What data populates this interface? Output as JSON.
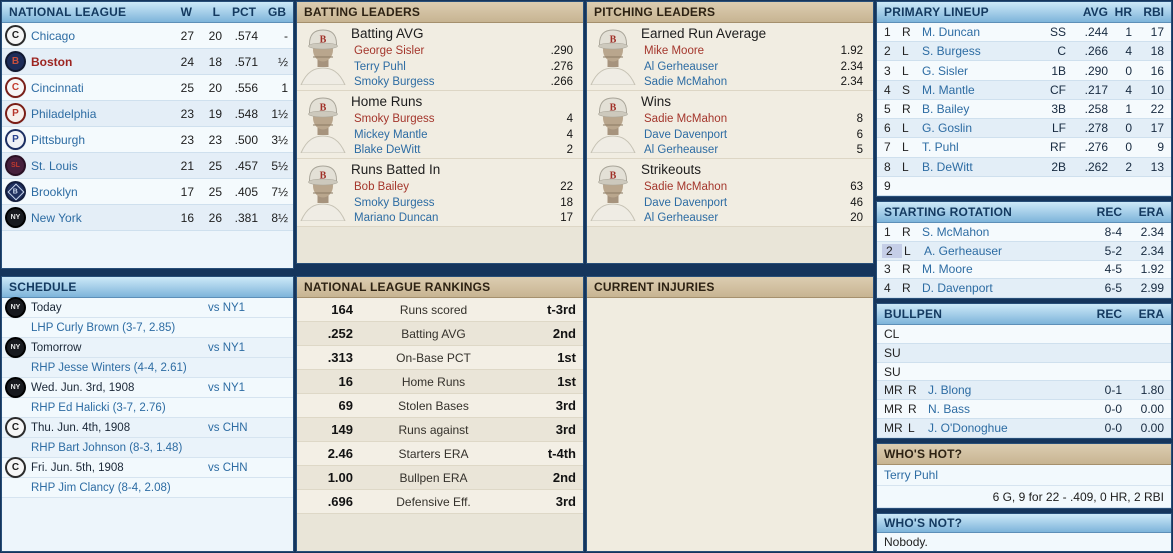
{
  "colors": {
    "accent_blue": "#2d6ca3",
    "leader_red": "#a4362c",
    "boston_red": "#9c2420",
    "header_blue_top": "#cde9f8",
    "header_blue_bottom": "#7eb4da",
    "header_tan_top": "#dccdb1",
    "header_tan_bottom": "#c7b492",
    "page_bg": "#15355c",
    "selected_cell": "#c5cee7"
  },
  "logos": {
    "CHN": {
      "bg": "#f6f6f6",
      "fg": "#1b1b1b",
      "border": "#2b2b2b",
      "text": "C"
    },
    "BSN": {
      "bg": "#1d2c58",
      "fg": "#c8503e",
      "border": "#101830",
      "text": "B"
    },
    "CIN": {
      "bg": "#f6f6f6",
      "fg": "#c23b2e",
      "border": "#7a2019",
      "text": "C"
    },
    "PHI": {
      "bg": "#f6efec",
      "fg": "#b5342a",
      "border": "#7a1d16",
      "text": "P"
    },
    "PIT": {
      "bg": "#f0f2f6",
      "fg": "#27418f",
      "border": "#1c2f63",
      "text": "P"
    },
    "SLN": {
      "bg": "#46203c",
      "fg": "#c0392e",
      "border": "#2a1024",
      "text": "SL"
    },
    "BRO": {
      "bg": "#20305e",
      "fg": "#cdd9ee",
      "border": "#131d3c",
      "text": "B",
      "shape": "diamond"
    },
    "NY1": {
      "bg": "#17191e",
      "fg": "#e8e8e8",
      "border": "#000000",
      "text": "NY"
    }
  },
  "standings": {
    "title": "NATIONAL LEAGUE",
    "columns": [
      "W",
      "L",
      "PCT",
      "GB"
    ],
    "rows": [
      {
        "team": "Chicago",
        "abbr": "CHN",
        "w": "27",
        "l": "20",
        "pct": ".574",
        "gb": "-",
        "highlight": false
      },
      {
        "team": "Boston",
        "abbr": "BSN",
        "w": "24",
        "l": "18",
        "pct": ".571",
        "gb": "½",
        "highlight": true
      },
      {
        "team": "Cincinnati",
        "abbr": "CIN",
        "w": "25",
        "l": "20",
        "pct": ".556",
        "gb": "1",
        "highlight": false
      },
      {
        "team": "Philadelphia",
        "abbr": "PHI",
        "w": "23",
        "l": "19",
        "pct": ".548",
        "gb": "1½",
        "highlight": false
      },
      {
        "team": "Pittsburgh",
        "abbr": "PIT",
        "w": "23",
        "l": "23",
        "pct": ".500",
        "gb": "3½",
        "highlight": false
      },
      {
        "team": "St. Louis",
        "abbr": "SLN",
        "w": "21",
        "l": "25",
        "pct": ".457",
        "gb": "5½",
        "highlight": false
      },
      {
        "team": "Brooklyn",
        "abbr": "BRO",
        "w": "17",
        "l": "25",
        "pct": ".405",
        "gb": "7½",
        "highlight": false
      },
      {
        "team": "New York",
        "abbr": "NY1",
        "w": "16",
        "l": "26",
        "pct": ".381",
        "gb": "8½",
        "highlight": false
      }
    ]
  },
  "schedule": {
    "title": "SCHEDULE",
    "games": [
      {
        "abbr": "NY1",
        "label": "Today",
        "vs": "vs NY1",
        "pitcher": "LHP Curly Brown (3-7, 2.85)"
      },
      {
        "abbr": "NY1",
        "label": "Tomorrow",
        "vs": "vs NY1",
        "pitcher": "RHP Jesse Winters (4-4, 2.61)"
      },
      {
        "abbr": "NY1",
        "label": "Wed. Jun. 3rd, 1908",
        "vs": "vs NY1",
        "pitcher": "RHP Ed Halicki (3-7, 2.76)"
      },
      {
        "abbr": "CHN",
        "label": "Thu. Jun. 4th, 1908",
        "vs": "vs CHN",
        "pitcher": "RHP Bart Johnson (8-3, 1.48)"
      },
      {
        "abbr": "CHN",
        "label": "Fri. Jun. 5th, 1908",
        "vs": "vs CHN",
        "pitcher": "RHP Jim Clancy (8-4, 2.08)"
      }
    ]
  },
  "batting_leaders": {
    "title": "BATTING LEADERS",
    "sections": [
      {
        "stat": "Batting AVG",
        "leaders": [
          {
            "name": "George Sisler",
            "value": ".290"
          },
          {
            "name": "Terry Puhl",
            "value": ".276"
          },
          {
            "name": "Smoky Burgess",
            "value": ".266"
          }
        ]
      },
      {
        "stat": "Home Runs",
        "leaders": [
          {
            "name": "Smoky Burgess",
            "value": "4"
          },
          {
            "name": "Mickey Mantle",
            "value": "4"
          },
          {
            "name": "Blake DeWitt",
            "value": "2"
          }
        ]
      },
      {
        "stat": "Runs Batted In",
        "leaders": [
          {
            "name": "Bob Bailey",
            "value": "22"
          },
          {
            "name": "Smoky Burgess",
            "value": "18"
          },
          {
            "name": "Mariano Duncan",
            "value": "17"
          }
        ]
      }
    ]
  },
  "pitching_leaders": {
    "title": "PITCHING LEADERS",
    "sections": [
      {
        "stat": "Earned Run Average",
        "leaders": [
          {
            "name": "Mike Moore",
            "value": "1.92"
          },
          {
            "name": "Al Gerheauser",
            "value": "2.34"
          },
          {
            "name": "Sadie McMahon",
            "value": "2.34"
          }
        ]
      },
      {
        "stat": "Wins",
        "leaders": [
          {
            "name": "Sadie McMahon",
            "value": "8"
          },
          {
            "name": "Dave Davenport",
            "value": "6"
          },
          {
            "name": "Al Gerheauser",
            "value": "5"
          }
        ]
      },
      {
        "stat": "Strikeouts",
        "leaders": [
          {
            "name": "Sadie McMahon",
            "value": "63"
          },
          {
            "name": "Dave Davenport",
            "value": "46"
          },
          {
            "name": "Al Gerheauser",
            "value": "20"
          }
        ]
      }
    ]
  },
  "rankings": {
    "title": "NATIONAL LEAGUE RANKINGS",
    "rows": [
      {
        "value": "164",
        "category": "Runs scored",
        "rank": "t-3rd"
      },
      {
        "value": ".252",
        "category": "Batting AVG",
        "rank": "2nd"
      },
      {
        "value": ".313",
        "category": "On-Base PCT",
        "rank": "1st"
      },
      {
        "value": "16",
        "category": "Home Runs",
        "rank": "1st"
      },
      {
        "value": "69",
        "category": "Stolen Bases",
        "rank": "3rd"
      },
      {
        "value": "149",
        "category": "Runs against",
        "rank": "3rd"
      },
      {
        "value": "2.46",
        "category": "Starters ERA",
        "rank": "t-4th"
      },
      {
        "value": "1.00",
        "category": "Bullpen ERA",
        "rank": "2nd"
      },
      {
        "value": ".696",
        "category": "Defensive Eff.",
        "rank": "3rd"
      }
    ]
  },
  "injuries": {
    "title": "CURRENT INJURIES"
  },
  "lineup": {
    "title": "PRIMARY LINEUP",
    "columns": [
      "AVG",
      "HR",
      "RBI"
    ],
    "rows": [
      {
        "num": "1",
        "hand": "R",
        "name": "M. Duncan",
        "pos": "SS",
        "avg": ".244",
        "hr": "1",
        "rbi": "17"
      },
      {
        "num": "2",
        "hand": "L",
        "name": "S. Burgess",
        "pos": "C",
        "avg": ".266",
        "hr": "4",
        "rbi": "18"
      },
      {
        "num": "3",
        "hand": "L",
        "name": "G. Sisler",
        "pos": "1B",
        "avg": ".290",
        "hr": "0",
        "rbi": "16"
      },
      {
        "num": "4",
        "hand": "S",
        "name": "M. Mantle",
        "pos": "CF",
        "avg": ".217",
        "hr": "4",
        "rbi": "10"
      },
      {
        "num": "5",
        "hand": "R",
        "name": "B. Bailey",
        "pos": "3B",
        "avg": ".258",
        "hr": "1",
        "rbi": "22"
      },
      {
        "num": "6",
        "hand": "L",
        "name": "G. Goslin",
        "pos": "LF",
        "avg": ".278",
        "hr": "0",
        "rbi": "17"
      },
      {
        "num": "7",
        "hand": "L",
        "name": "T. Puhl",
        "pos": "RF",
        "avg": ".276",
        "hr": "0",
        "rbi": "9"
      },
      {
        "num": "8",
        "hand": "L",
        "name": "B. DeWitt",
        "pos": "2B",
        "avg": ".262",
        "hr": "2",
        "rbi": "13"
      },
      {
        "num": "9",
        "hand": "",
        "name": "",
        "pos": "",
        "avg": "",
        "hr": "",
        "rbi": ""
      }
    ]
  },
  "rotation": {
    "title": "STARTING ROTATION",
    "columns": [
      "REC",
      "ERA"
    ],
    "rows": [
      {
        "num": "1",
        "hand": "R",
        "name": "S. McMahon",
        "rec": "8-4",
        "era": "2.34",
        "selected": false
      },
      {
        "num": "2",
        "hand": "L",
        "name": "A. Gerheauser",
        "rec": "5-2",
        "era": "2.34",
        "selected": true
      },
      {
        "num": "3",
        "hand": "R",
        "name": "M. Moore",
        "rec": "4-5",
        "era": "1.92",
        "selected": false
      },
      {
        "num": "4",
        "hand": "R",
        "name": "D. Davenport",
        "rec": "6-5",
        "era": "2.99",
        "selected": false
      }
    ]
  },
  "bullpen": {
    "title": "BULLPEN",
    "columns": [
      "REC",
      "ERA"
    ],
    "rows": [
      {
        "role": "CL",
        "hand": "",
        "name": "",
        "rec": "",
        "era": ""
      },
      {
        "role": "SU",
        "hand": "",
        "name": "",
        "rec": "",
        "era": ""
      },
      {
        "role": "SU",
        "hand": "",
        "name": "",
        "rec": "",
        "era": ""
      },
      {
        "role": "MR",
        "hand": "R",
        "name": "J. Blong",
        "rec": "0-1",
        "era": "1.80"
      },
      {
        "role": "MR",
        "hand": "R",
        "name": "N. Bass",
        "rec": "0-0",
        "era": "0.00"
      },
      {
        "role": "MR",
        "hand": "L",
        "name": "J. O'Donoghue",
        "rec": "0-0",
        "era": "0.00"
      }
    ]
  },
  "whos_hot": {
    "title": "WHO'S HOT?",
    "player": "Terry Puhl",
    "statline": "6 G, 9 for 22 - .409, 0 HR, 2 RBI"
  },
  "whos_not": {
    "title": "WHO'S NOT?",
    "text": "Nobody."
  }
}
